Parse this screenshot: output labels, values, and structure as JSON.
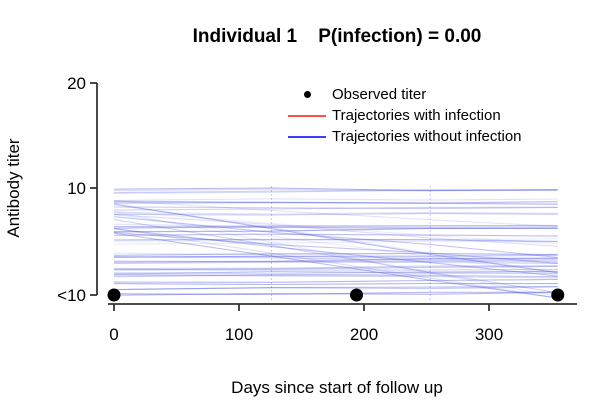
{
  "chart_data": {
    "type": "line",
    "title": "Individual 1    P(infection) = 0.00",
    "xlabel": "Days since start of follow up",
    "ylabel": "Antibody titer",
    "x_ticks": [
      0,
      100,
      200,
      300
    ],
    "y_ticks": [
      "<10",
      "10",
      "20"
    ],
    "xlim": [
      -5,
      370
    ],
    "grid": "off",
    "legend_position": "top-right-inside",
    "legend": [
      {
        "label": "Observed titer",
        "marker": "point",
        "color": "#000000"
      },
      {
        "label": "Trajectories with infection",
        "marker": "line",
        "color": "#ff4d4d"
      },
      {
        "label": "Trajectories without infection",
        "marker": "line",
        "color": "#3c3cff"
      }
    ],
    "observed_points": [
      {
        "day": 0,
        "titer": "<10"
      },
      {
        "day": 194,
        "titer": "<10"
      },
      {
        "day": 355,
        "titer": "<10"
      }
    ],
    "trajectories": {
      "count": 60,
      "color_rgb": [
        70,
        80,
        220
      ],
      "titer_band": [
        "<10",
        "10"
      ],
      "day_range": [
        0,
        355
      ],
      "knot_days": [
        126,
        253
      ],
      "seed": 17
    }
  }
}
